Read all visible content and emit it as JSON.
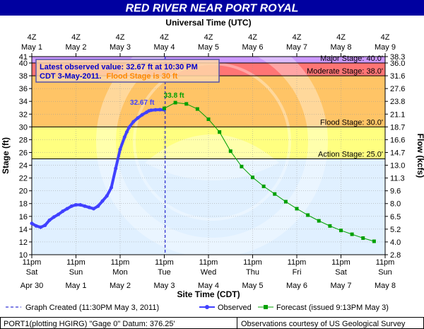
{
  "header": {
    "title": "RED RIVER NEAR PORT ROYAL"
  },
  "utc_axis": {
    "label": "Universal Time (UTC)",
    "ticks": [
      {
        "top": "4Z",
        "bottom": "May  1"
      },
      {
        "top": "4Z",
        "bottom": "May  2"
      },
      {
        "top": "4Z",
        "bottom": "May  3"
      },
      {
        "top": "4Z",
        "bottom": "May  4"
      },
      {
        "top": "4Z",
        "bottom": "May  5"
      },
      {
        "top": "4Z",
        "bottom": "May  6"
      },
      {
        "top": "4Z",
        "bottom": "May  7"
      },
      {
        "top": "4Z",
        "bottom": "May  8"
      },
      {
        "top": "4Z",
        "bottom": "May  9"
      }
    ]
  },
  "site_axis": {
    "label": "Site Time (CDT)",
    "ticks": [
      {
        "time": "11pm",
        "day": "Sat",
        "date": "Apr 30"
      },
      {
        "time": "11pm",
        "day": "Sun",
        "date": "May 1"
      },
      {
        "time": "11pm",
        "day": "Mon",
        "date": "May 2"
      },
      {
        "time": "11pm",
        "day": "Tue",
        "date": "May 3"
      },
      {
        "time": "11pm",
        "day": "Wed",
        "date": "May 4"
      },
      {
        "time": "11pm",
        "day": "Thu",
        "date": "May 5"
      },
      {
        "time": "11pm",
        "day": "Fri",
        "date": "May 6"
      },
      {
        "time": "11pm",
        "day": "Sat",
        "date": "May 7"
      },
      {
        "time": "11pm",
        "day": "Sun",
        "date": "May 8"
      }
    ]
  },
  "stage_axis": {
    "label": "Stage (ft)",
    "ticks": [
      "10",
      "12",
      "14",
      "16",
      "18",
      "20",
      "22",
      "24",
      "26",
      "28",
      "30",
      "32",
      "34",
      "36",
      "38",
      "40",
      "41"
    ]
  },
  "flow_axis": {
    "label": "Flow (kcfs)",
    "ticks": [
      {
        "label": "2.8",
        "stage": 10
      },
      {
        "label": "4.0",
        "stage": 12
      },
      {
        "label": "5.2",
        "stage": 14
      },
      {
        "label": "6.5",
        "stage": 16
      },
      {
        "label": "8.0",
        "stage": 18
      },
      {
        "label": "9.6",
        "stage": 20
      },
      {
        "label": "11.3",
        "stage": 22
      },
      {
        "label": "13.0",
        "stage": 24
      },
      {
        "label": "14.7",
        "stage": 26
      },
      {
        "label": "16.6",
        "stage": 28
      },
      {
        "label": "18.7",
        "stage": 30
      },
      {
        "label": "21.1",
        "stage": 32
      },
      {
        "label": "23.8",
        "stage": 34
      },
      {
        "label": "27.6",
        "stage": 36
      },
      {
        "label": "31.6",
        "stage": 38
      },
      {
        "label": "36.0",
        "stage": 40
      },
      {
        "label": "38.3",
        "stage": 41
      }
    ]
  },
  "bands": [
    {
      "from": 10,
      "to": 25,
      "color": "#e0f0ff"
    },
    {
      "from": 25,
      "to": 30,
      "color": "#ffff80"
    },
    {
      "from": 30,
      "to": 38,
      "color": "#ffc466"
    },
    {
      "from": 38,
      "to": 40,
      "color": "#ff7575"
    },
    {
      "from": 40,
      "to": 41,
      "color": "#cc99ff"
    }
  ],
  "thresholds": [
    {
      "label": "Major Stage: 40.0'",
      "stage": 40
    },
    {
      "label": "Moderate Stage: 38.0'",
      "stage": 38
    },
    {
      "label": "Flood Stage: 30.0'",
      "stage": 30
    },
    {
      "label": "Action Stage: 25.0'",
      "stage": 25
    }
  ],
  "info_box": {
    "line1": "Latest observed value: 32.67 ft at 10:30 PM",
    "line2_a": "CDT 3-May-2011.",
    "line2_b": "Flood Stage is 30 ft"
  },
  "annotations": {
    "observed_peak": "32.67 ft",
    "forecast_peak": "33.8 ft"
  },
  "legend": {
    "graph_created": "Graph Created (11:30PM May 3, 2011)",
    "observed": "Observed",
    "forecast": "Forecast (issued 9:13PM May 3)"
  },
  "footer": {
    "left": "PORT1(plotting HGIRG) \"Gage 0\" Datum: 376.25'",
    "right": "Observations courtesy of US Geological Survey"
  },
  "colors": {
    "title_bar": "#0000a0",
    "observed": "#4040ff",
    "forecast": "#00a000",
    "axis_label": "#000080",
    "info_text": "#0000cc",
    "info_highlight": "#ff8800"
  },
  "chart_data": {
    "type": "line",
    "title": "RED RIVER NEAR PORT ROYAL",
    "xlabel": "Site Time (CDT)",
    "x2label": "Universal Time (UTC)",
    "ylabel": "Stage (ft)",
    "y2label": "Flow (kcfs)",
    "x_unit": "days after 11pm Sat Apr 30 (CDT)",
    "xlim": [
      0,
      8
    ],
    "ylim": [
      10,
      41
    ],
    "grid": true,
    "series": [
      {
        "name": "Observed",
        "x": [
          0.0,
          0.1,
          0.2,
          0.3,
          0.4,
          0.5,
          0.6,
          0.7,
          0.8,
          0.9,
          1.0,
          1.1,
          1.2,
          1.3,
          1.4,
          1.5,
          1.6,
          1.7,
          1.8,
          1.9,
          2.0,
          2.1,
          2.15,
          2.2,
          2.3,
          2.4,
          2.5,
          2.6,
          2.65,
          2.7,
          2.8,
          2.9,
          3.0
        ],
        "y": [
          14.9,
          14.5,
          14.3,
          14.6,
          15.4,
          15.9,
          16.3,
          16.8,
          17.2,
          17.6,
          17.8,
          17.8,
          17.6,
          17.4,
          17.2,
          17.6,
          18.4,
          19.2,
          20.5,
          23.5,
          26.5,
          28.4,
          29.2,
          29.9,
          30.8,
          31.4,
          31.9,
          32.3,
          32.5,
          32.6,
          32.67,
          32.7,
          32.67
        ]
      },
      {
        "name": "Forecast (issued 9:13PM May 3)",
        "x": [
          3.0,
          3.25,
          3.5,
          3.75,
          4.0,
          4.25,
          4.5,
          4.75,
          5.0,
          5.25,
          5.5,
          5.75,
          6.0,
          6.25,
          6.5,
          6.75,
          7.0,
          7.25,
          7.5,
          7.75
        ],
        "y": [
          32.9,
          33.8,
          33.6,
          32.8,
          31.2,
          29.2,
          26.2,
          23.8,
          22.1,
          20.7,
          19.5,
          18.3,
          17.2,
          16.2,
          15.3,
          14.5,
          13.8,
          13.2,
          12.6,
          12.1
        ]
      }
    ],
    "thresholds": [
      {
        "name": "Action Stage",
        "value": 25.0
      },
      {
        "name": "Flood Stage",
        "value": 30.0
      },
      {
        "name": "Moderate Stage",
        "value": 38.0
      },
      {
        "name": "Major Stage",
        "value": 40.0
      }
    ],
    "current_time_marker": 3.02
  }
}
